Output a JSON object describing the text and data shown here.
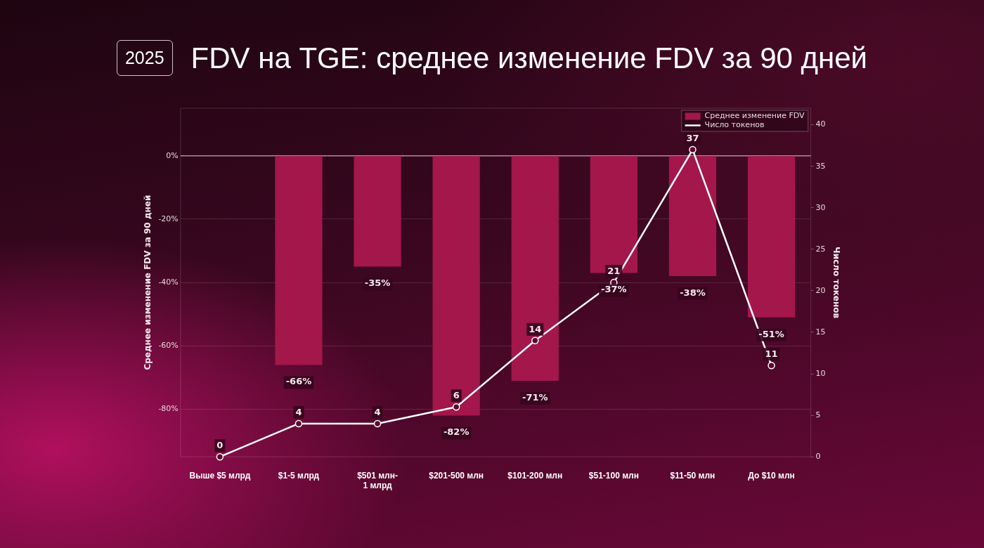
{
  "chart_data": {
    "type": "bar",
    "title": "FDV на TGE: среднее изменение FDV за 90 дней",
    "subtitle": "2025",
    "categories": [
      "Выше $5 млрд",
      "$1-5 млрд",
      "$501 млн-1 млрд",
      "$201-500 млн",
      "$101-200 млн",
      "$51-100 млн",
      "$11-50 млн",
      "До $10 млн"
    ],
    "series": [
      {
        "name": "Среднее изменение FDV",
        "color": "#a3174a",
        "values": [
          null,
          -66,
          -35,
          -82,
          -71,
          -37,
          -38,
          -51
        ],
        "value_labels": [
          null,
          "-66%",
          "-35%",
          "-82%",
          "-71%",
          "-37%",
          "-38%",
          "-51%"
        ]
      },
      {
        "name": "Число токенов",
        "type": "line",
        "axis": "y2",
        "color": "#ffffff",
        "marker": "circle",
        "values": [
          0,
          4,
          4,
          6,
          14,
          21,
          37,
          11
        ],
        "value_labels": [
          "0",
          "4",
          "4",
          "6",
          "14",
          "21",
          "37",
          "11"
        ]
      }
    ],
    "ylabel": "Среднее изменение FDV за 90 дней",
    "y2label": "Число токенов",
    "ylim": [
      -95,
      15
    ],
    "yticks": [
      {
        "value": -80,
        "label": "-80%"
      },
      {
        "value": -60,
        "label": "-60%"
      },
      {
        "value": -40,
        "label": "-40%"
      },
      {
        "value": -20,
        "label": "-20%"
      },
      {
        "value": 0,
        "label": "0%"
      }
    ],
    "y2lim": [
      0,
      42
    ],
    "y2ticks": [
      0,
      5,
      10,
      15,
      20,
      25,
      30,
      35,
      40
    ],
    "ref_lines": [
      {
        "axis": "y",
        "value": 0,
        "color": "#b38a9c"
      }
    ],
    "grid": "y",
    "legend": "top right"
  }
}
